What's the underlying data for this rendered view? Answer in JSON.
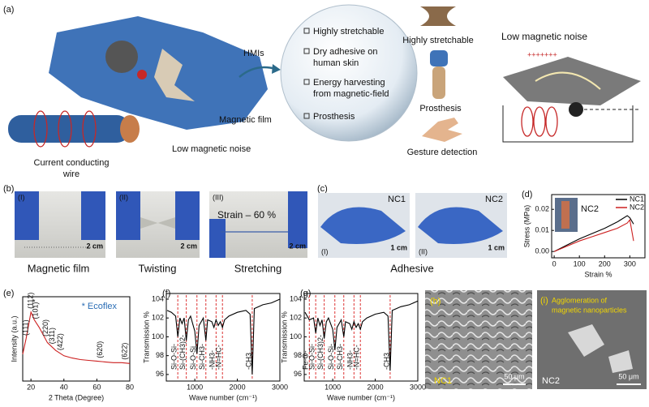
{
  "figure_a": {
    "label": "(a)",
    "magnetic_film": "Magnetic film",
    "hmis": "HMIs",
    "low_noise_wire": "Low magnetic noise",
    "wire_label": [
      "Current conducting",
      "wire"
    ],
    "features": [
      [
        "Highly stretchable"
      ],
      [
        "Dry adhesive on",
        "human skin"
      ],
      [
        "Energy harvesting",
        "from magnetic-field"
      ],
      [
        "Prosthesis"
      ]
    ],
    "icons": [
      "Highly stretchable",
      "Prosthesis",
      "Gesture detection"
    ],
    "noise_title": "Low magnetic noise",
    "charges": "+++++++"
  },
  "figure_b": {
    "label": "(b)",
    "photos": [
      {
        "label": "(I)",
        "scale": "2 cm",
        "caption": "Magnetic film"
      },
      {
        "label": "(II)",
        "scale": "2 cm",
        "caption": "Twisting"
      },
      {
        "label": "(III)",
        "scale": "2 cm",
        "caption": "Stretching",
        "text": "Strain – 60 %"
      }
    ]
  },
  "figure_c": {
    "label": "(c)",
    "caption": "Adhesive",
    "photos": [
      {
        "label": "(I)",
        "sample": "NC1",
        "scale": "1 cm"
      },
      {
        "label": "(II)",
        "sample": "NC2",
        "scale": "1 cm"
      }
    ]
  },
  "chart_data": [
    {
      "type": "line",
      "label": "(d)",
      "x_label": "Strain %",
      "y_label": "Stress (MPa)",
      "x": [
        0,
        50,
        100,
        150,
        200,
        250,
        290,
        300,
        315
      ],
      "series": [
        {
          "name": "NC1",
          "color": "#000000",
          "values": [
            0,
            0.003,
            0.006,
            0.0085,
            0.011,
            0.014,
            0.017,
            0.016,
            0.013
          ]
        },
        {
          "name": "NC2",
          "color": "#cc1f1f",
          "values": [
            0,
            0.0025,
            0.005,
            0.007,
            0.009,
            0.011,
            0.0135,
            0.015,
            0.005
          ]
        }
      ],
      "xlim": [
        -10,
        360
      ],
      "ylim": [
        -0.003,
        0.027
      ],
      "xticks": [
        0,
        100,
        200,
        300
      ],
      "yticks": [
        {
          "value": 0,
          "label": "0.00"
        },
        {
          "value": 0.01,
          "label": "0.01"
        },
        {
          "value": 0.02,
          "label": "0.02"
        }
      ],
      "legend": "upper right",
      "inset_label": "NC2"
    },
    {
      "type": "line",
      "label": "(e)",
      "x_label": "2 Theta (Degree)",
      "y_label": "Intensity (a.u.)",
      "color": "#cc1f1f",
      "x": [
        15,
        17,
        20,
        22,
        25,
        30,
        35,
        40,
        45,
        50,
        55,
        60,
        65,
        70,
        75,
        80
      ],
      "values": [
        35,
        55,
        90,
        80,
        70,
        50,
        40,
        33,
        30,
        28,
        27,
        26,
        25,
        24,
        24,
        23
      ],
      "xlim": [
        15,
        80
      ],
      "ylim": [
        0,
        110
      ],
      "xticks": [
        20,
        40,
        60,
        80
      ],
      "annotation": "* Ecoflex",
      "peaks": [
        {
          "x": 17,
          "label": "(111)"
        },
        {
          "x": 20,
          "label": "(112)"
        },
        {
          "x": 23,
          "label": "(101)*"
        },
        {
          "x": 29,
          "label": "(220)"
        },
        {
          "x": 33,
          "label": "(311)"
        },
        {
          "x": 38,
          "label": "(422)"
        },
        {
          "x": 62,
          "label": "(620)"
        },
        {
          "x": 77,
          "label": "(622)"
        }
      ]
    },
    {
      "type": "line",
      "label": "(f)",
      "x_label": "Wave number (cm⁻¹)",
      "y_label": "Transmission %",
      "color": "#000000",
      "x": [
        350,
        450,
        550,
        600,
        650,
        700,
        750,
        800,
        850,
        900,
        1000,
        1050,
        1100,
        1200,
        1260,
        1300,
        1400,
        1450,
        1500,
        1550,
        1600,
        1650,
        1700,
        1800,
        2000,
        2200,
        2300,
        2350,
        2400,
        2600,
        2800,
        3000
      ],
      "values": [
        102.8,
        102.6,
        102.2,
        100.0,
        102.0,
        101.4,
        102.0,
        99.6,
        101.8,
        102.2,
        100.6,
        98.2,
        101.2,
        102.0,
        99.6,
        101.8,
        101.6,
        101.0,
        101.8,
        101.2,
        101.6,
        101.0,
        101.8,
        102.2,
        102.6,
        102.8,
        102.4,
        96.0,
        103.0,
        103.4,
        103.6,
        104.0
      ],
      "xlim": [
        330,
        3000
      ],
      "ylim": [
        95.3,
        104.6
      ],
      "xticks": [
        1000,
        2000,
        3000
      ],
      "yticks": [
        96,
        98,
        100,
        102,
        104
      ],
      "markers": [
        {
          "x": 600,
          "label": "Si-O-Si-"
        },
        {
          "x": 800,
          "label": "Si-(CH3)2-"
        },
        {
          "x": 1050,
          "label": "Si-O-Si"
        },
        {
          "x": 1260,
          "label": "Si-CH3-"
        },
        {
          "x": 1500,
          "label": "-NH3-"
        },
        {
          "x": 1650,
          "label": "-N=HC-"
        },
        {
          "x": 2350,
          "label": "-CH3"
        }
      ]
    },
    {
      "type": "line",
      "label": "(g)",
      "x_label": "Wave number (cm⁻¹)",
      "y_label": "Transmission %",
      "color": "#000000",
      "x": [
        350,
        450,
        550,
        600,
        650,
        700,
        750,
        800,
        850,
        900,
        1000,
        1050,
        1100,
        1200,
        1260,
        1300,
        1400,
        1450,
        1500,
        1550,
        1600,
        1650,
        1700,
        1800,
        2000,
        2200,
        2300,
        2350,
        2400,
        2600,
        2800,
        3000
      ],
      "values": [
        102.6,
        101.8,
        102.0,
        100.4,
        102.0,
        101.2,
        101.8,
        99.8,
        101.6,
        102.0,
        100.8,
        98.6,
        101.0,
        101.8,
        100.0,
        101.6,
        101.4,
        100.8,
        101.6,
        101.0,
        101.4,
        100.8,
        101.6,
        102.0,
        102.4,
        102.6,
        102.2,
        96.4,
        102.8,
        103.2,
        103.4,
        103.8
      ],
      "xlim": [
        330,
        3000
      ],
      "ylim": [
        95.3,
        104.6
      ],
      "xticks": [
        1000,
        2000,
        3000
      ],
      "yticks": [
        96,
        98,
        100,
        102,
        104
      ],
      "markers": [
        {
          "x": 450,
          "label": "Fe-O-"
        },
        {
          "x": 600,
          "label": "Si-O-Si-"
        },
        {
          "x": 800,
          "label": "Si-(CH3)2-"
        },
        {
          "x": 1050,
          "label": "Si-O-Si-"
        },
        {
          "x": 1260,
          "label": "Si-CH3-"
        },
        {
          "x": 1500,
          "label": "-NH3-"
        },
        {
          "x": 1650,
          "label": "-N=HC-"
        },
        {
          "x": 2350,
          "label": "-CH3"
        }
      ]
    }
  ],
  "figure_h": {
    "label": "(h)",
    "sample": "NC1",
    "scale": "50 μm"
  },
  "figure_i": {
    "label": "(i)",
    "note": [
      "Agglomeration of",
      "magnetic nanoparticles"
    ],
    "sample": "NC2",
    "scale": "50 μm"
  }
}
